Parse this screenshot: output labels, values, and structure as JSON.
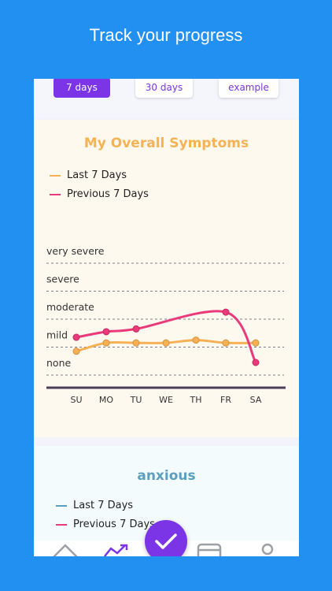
{
  "headline": "Track your progress",
  "tabs": [
    {
      "label": "7 days",
      "active": true
    },
    {
      "label": "30 days",
      "active": false
    },
    {
      "label": "example",
      "active": false
    }
  ],
  "card1": {
    "title": "My Overall Symptoms",
    "title_color": "#f7b256",
    "legend": [
      {
        "label": "Last 7 Days",
        "color": "#f6b157"
      },
      {
        "label": "Previous 7 Days",
        "color": "#ea3a7b"
      }
    ]
  },
  "chart_data": {
    "type": "line",
    "title": "My Overall Symptoms",
    "y_levels": [
      "none",
      "mild",
      "moderate",
      "severe",
      "very severe"
    ],
    "categories": [
      "SU",
      "MO",
      "TU",
      "WE",
      "TH",
      "FR",
      "SA"
    ],
    "series": [
      {
        "name": "Last 7 Days",
        "color": "#f6b157",
        "values": [
          0.4,
          0.7,
          0.7,
          0.7,
          0.8,
          0.7,
          0.7
        ]
      },
      {
        "name": "Previous 7 Days",
        "color": "#ea3a7b",
        "values": [
          0.9,
          1.1,
          1.2,
          null,
          null,
          1.8,
          0.0
        ]
      }
    ],
    "ylim": [
      0,
      4
    ],
    "grid": true,
    "legend_position": "top-left"
  },
  "card2": {
    "title": "anxious",
    "title_color": "#5b9fbf",
    "legend": [
      {
        "label": "Last 7 Days",
        "color": "#5b9fbf"
      },
      {
        "label": "Previous 7 Days",
        "color": "#ea3a7b"
      }
    ]
  },
  "nav": {
    "icons": [
      "home-icon",
      "trend-chart-icon",
      "journal-icon",
      "profile-icon"
    ],
    "fab_icon": "checkmark-icon",
    "accent": "#7b35e6"
  }
}
